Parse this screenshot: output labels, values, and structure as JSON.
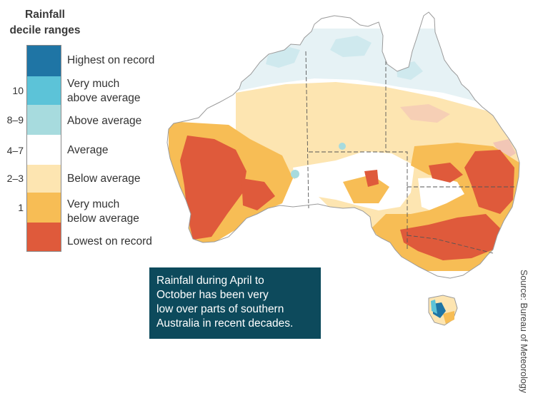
{
  "legend": {
    "title_line1": "Rainfall",
    "title_line2": "decile ranges",
    "items": [
      {
        "label": "Highest on record",
        "color": "#1f75a5"
      },
      {
        "label_line1": "Very much",
        "label_line2": "above average",
        "decile": "10",
        "color": "#5cc3d8"
      },
      {
        "label": "Above average",
        "decile": "8–9",
        "color": "#a7dbde"
      },
      {
        "label": "Average",
        "decile": "4–7",
        "color": "#ffffff"
      },
      {
        "label": "Below average",
        "decile": "2–3",
        "color": "#fde5b1"
      },
      {
        "label_line1": "Very much",
        "label_line2": "below average",
        "decile": "1",
        "color": "#f7bd55"
      },
      {
        "label": "Lowest on record",
        "color": "#df5a3b"
      }
    ]
  },
  "callout": {
    "line1": "Rainfall during April to",
    "line2": "October has been very",
    "line3": "low over parts of southern",
    "line4": "Australia in recent decades."
  },
  "source": "Source: Bureau of Meteorology",
  "map": {
    "subject": "Australia rainfall deciles, April to October",
    "colors": {
      "highest": "#1f75a5",
      "very_much_above": "#5cc3d8",
      "above": "#a7dbde",
      "average": "#ffffff",
      "below": "#fde5b1",
      "very_much_below": "#f7bd55",
      "lowest": "#df5a3b",
      "pale_blue_north": "#e6f2f5",
      "pink_patch": "#f2c6b6",
      "outline": "#9a9a9a",
      "borders": "#555555"
    }
  }
}
